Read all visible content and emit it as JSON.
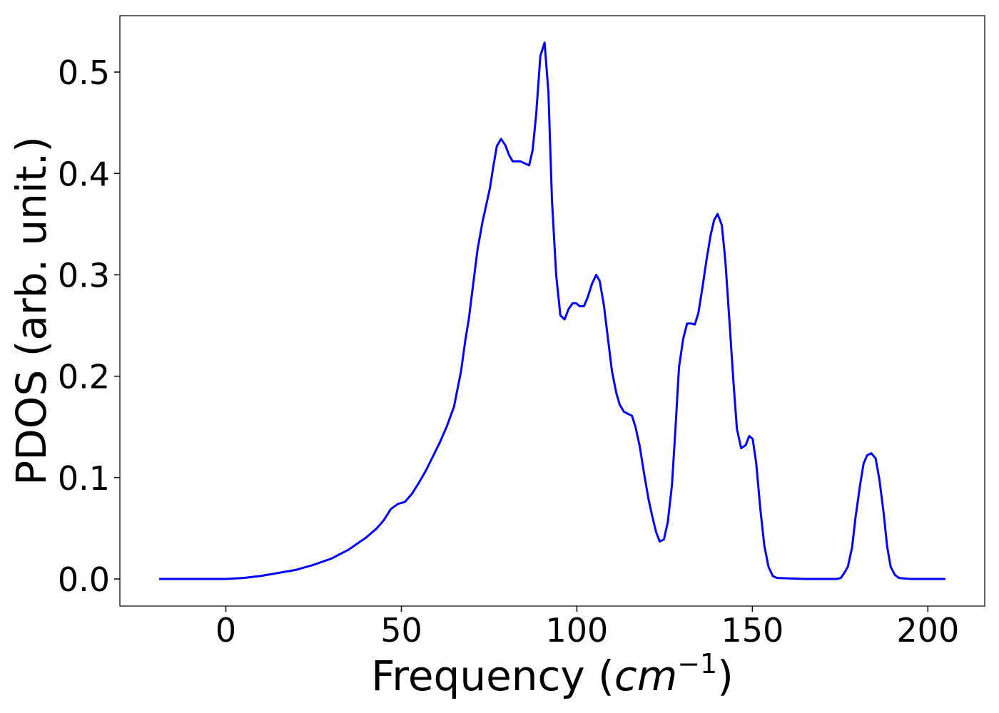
{
  "chart_data": {
    "type": "line",
    "xlabel": [
      "Frequency (",
      "cm",
      "−1",
      ")"
    ],
    "ylabel": "PDOS (arb. unit.)",
    "x": [
      -19,
      -10,
      0,
      5,
      10,
      15,
      20,
      25,
      30,
      35,
      40,
      43,
      45,
      47,
      49,
      51,
      53,
      55,
      57,
      59,
      61,
      63,
      65,
      67,
      68.2,
      69.2,
      71.7,
      73.1,
      75.2,
      76.2,
      77.2,
      78.4,
      79.6,
      80.7,
      81.7,
      83.9,
      85.1,
      86.4,
      87.4,
      88.4,
      89.6,
      90.8,
      91.9,
      92.9,
      94.1,
      95.3,
      96.5,
      97.6,
      98.8,
      99.8,
      100.8,
      102,
      103,
      104.3,
      105.5,
      106.5,
      107.7,
      109,
      110,
      111.2,
      112.2,
      113.4,
      114.5,
      115.7,
      116.7,
      117.9,
      119.1,
      120.4,
      121.4,
      122.6,
      123.6,
      124.8,
      125.9,
      127.1,
      128.1,
      129.1,
      130.3,
      131.4,
      132.6,
      133.6,
      134.6,
      135.8,
      136.9,
      138.1,
      139.1,
      140.1,
      141.3,
      142.3,
      143.4,
      144.6,
      145.6,
      146.8,
      148.1,
      149.1,
      150.1,
      151.1,
      152.3,
      153.4,
      154.6,
      155.8,
      157,
      165,
      174,
      175.2,
      176.2,
      177.2,
      178.4,
      179.4,
      180.7,
      181.7,
      182.7,
      183.9,
      185.1,
      186.2,
      187.4,
      188.4,
      189.4,
      190.6,
      191.8,
      195,
      205
    ],
    "series": [
      {
        "color": "#0000ff",
        "values": [
          0,
          0,
          0,
          0.001,
          0.003,
          0.006,
          0.009,
          0.014,
          0.02,
          0.029,
          0.041,
          0.05,
          0.058,
          0.069,
          0.074,
          0.076,
          0.084,
          0.095,
          0.107,
          0.121,
          0.135,
          0.151,
          0.17,
          0.205,
          0.235,
          0.256,
          0.325,
          0.352,
          0.385,
          0.407,
          0.427,
          0.434,
          0.428,
          0.418,
          0.412,
          0.412,
          0.41,
          0.408,
          0.423,
          0.458,
          0.516,
          0.529,
          0.48,
          0.374,
          0.3,
          0.26,
          0.256,
          0.266,
          0.272,
          0.272,
          0.269,
          0.269,
          0.277,
          0.291,
          0.3,
          0.294,
          0.27,
          0.233,
          0.205,
          0.184,
          0.172,
          0.165,
          0.163,
          0.161,
          0.15,
          0.131,
          0.105,
          0.079,
          0.063,
          0.046,
          0.037,
          0.039,
          0.056,
          0.093,
          0.149,
          0.209,
          0.237,
          0.252,
          0.252,
          0.251,
          0.262,
          0.288,
          0.314,
          0.339,
          0.354,
          0.36,
          0.349,
          0.314,
          0.258,
          0.195,
          0.148,
          0.129,
          0.132,
          0.141,
          0.138,
          0.114,
          0.068,
          0.033,
          0.012,
          0.003,
          0.001,
          0,
          0,
          0.001,
          0.006,
          0.012,
          0.031,
          0.061,
          0.093,
          0.114,
          0.122,
          0.124,
          0.119,
          0.098,
          0.065,
          0.032,
          0.012,
          0.004,
          0.001,
          0,
          0
        ]
      }
    ],
    "xlim": [
      -30.2,
      216.2
    ],
    "xticks": [
      0,
      50,
      100,
      150,
      200
    ],
    "ylim": [
      -0.0267,
      0.5556
    ],
    "yticks": [
      {
        "value": 0,
        "label": "0.0"
      },
      0.1,
      0.2,
      0.3,
      0.4,
      0.5
    ],
    "grid": false
  }
}
